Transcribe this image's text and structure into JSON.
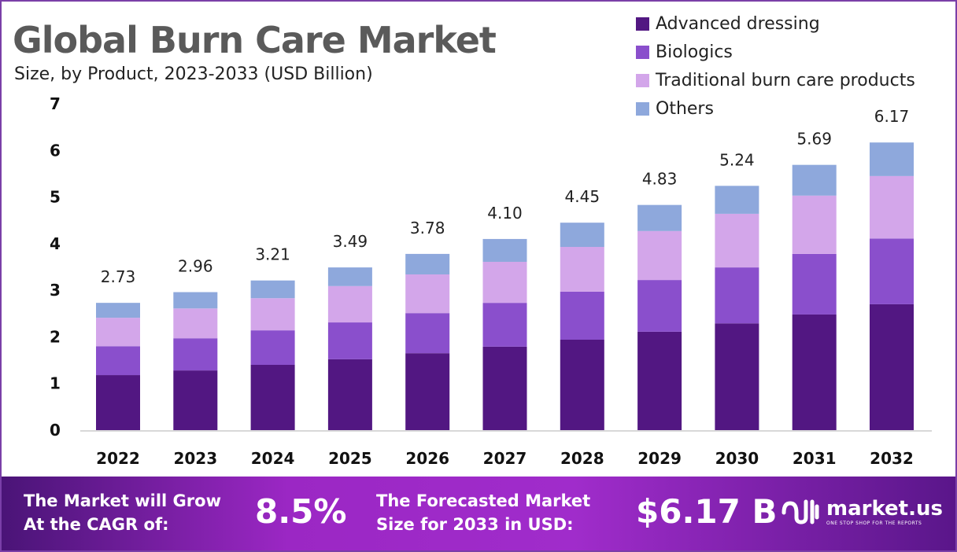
{
  "chart_data": {
    "type": "bar",
    "stacked": true,
    "title": "Global Burn Care Market",
    "subtitle": "Size, by Product, 2023-2033 (USD Billion)",
    "categories": [
      "2022",
      "2023",
      "2024",
      "2025",
      "2026",
      "2027",
      "2028",
      "2029",
      "2030",
      "2031",
      "2032"
    ],
    "series": [
      {
        "name": "Advanced dressing",
        "color": "#521782",
        "values": [
          1.18,
          1.28,
          1.4,
          1.52,
          1.65,
          1.79,
          1.94,
          2.11,
          2.29,
          2.48,
          2.7
        ]
      },
      {
        "name": "Biologics",
        "color": "#8a4fcc",
        "values": [
          0.62,
          0.69,
          0.74,
          0.79,
          0.86,
          0.94,
          1.03,
          1.11,
          1.2,
          1.3,
          1.41
        ]
      },
      {
        "name": "Traditional burn care products",
        "color": "#d3a6ea",
        "values": [
          0.61,
          0.64,
          0.69,
          0.78,
          0.83,
          0.88,
          0.96,
          1.05,
          1.15,
          1.25,
          1.34
        ]
      },
      {
        "name": "Others",
        "color": "#8ea8dc",
        "values": [
          0.32,
          0.35,
          0.38,
          0.4,
          0.44,
          0.49,
          0.52,
          0.56,
          0.6,
          0.66,
          0.72
        ]
      }
    ],
    "totals": [
      "2.73",
      "2.96",
      "3.21",
      "3.49",
      "3.78",
      "4.10",
      "4.45",
      "4.83",
      "5.24",
      "5.69",
      "6.17"
    ],
    "yticks": [
      "0",
      "1",
      "2",
      "3",
      "4",
      "5",
      "6",
      "7"
    ],
    "ylim": [
      0,
      7
    ],
    "grid": false,
    "legend": "top-right"
  },
  "footer": {
    "cagr_label_1": "The Market will Grow",
    "cagr_label_2": "At the CAGR of:",
    "cagr_value": "8.5%",
    "forecast_label_1": "The Forecasted Market",
    "forecast_label_2": "Size for 2033 in USD:",
    "forecast_value": "$6.17 B",
    "logo_name": "market.us",
    "logo_tagline": "ONE STOP SHOP FOR THE REPORTS"
  }
}
